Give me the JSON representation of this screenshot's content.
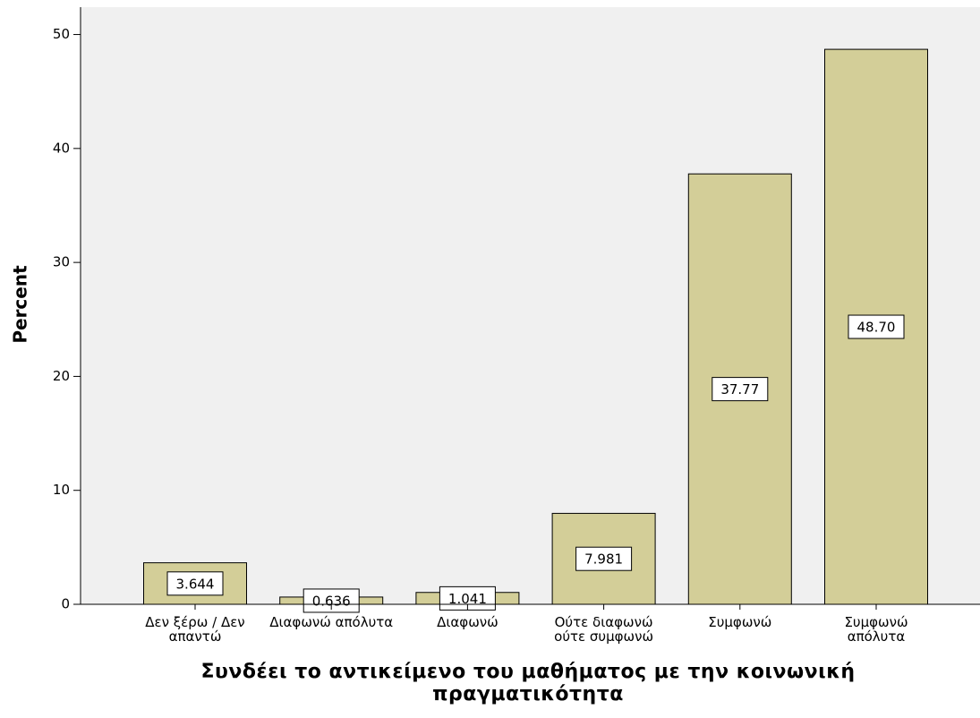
{
  "chart_data": {
    "type": "bar",
    "x_label": "Συνδέει το αντικείμενο του μαθήματος με την κοινωνική πραγματικότητα",
    "y_label": "Percent",
    "categories": [
      "Δεν ξέρω / Δεν απαντώ",
      "Διαφωνώ απόλυτα",
      "Διαφωνώ",
      "Ούτε διαφωνώ ούτε συμφωνώ",
      "Συμφωνώ",
      "Συμφωνώ απόλυτα"
    ],
    "values": [
      3.644,
      0.636,
      1.041,
      7.981,
      37.77,
      48.7
    ],
    "value_labels": [
      "3.644",
      "0.636",
      "1.041",
      "7.981",
      "37.77",
      "48.70"
    ],
    "color": "#d3ce98",
    "ylim": [
      0,
      52.4
    ],
    "yticks": [
      0,
      10,
      20,
      30,
      40,
      50
    ]
  }
}
